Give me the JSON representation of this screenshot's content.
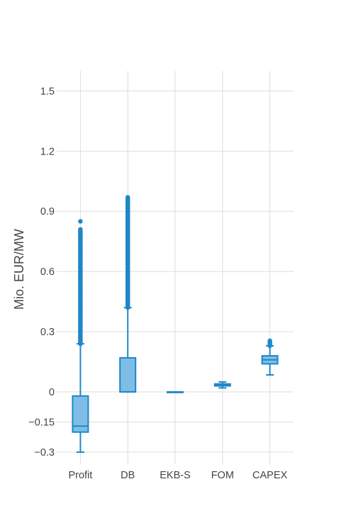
{
  "chart_data": {
    "type": "box",
    "title": "",
    "xlabel": "",
    "ylabel": "Mio. EUR/MW",
    "ylim": [
      -0.36,
      1.6
    ],
    "yticks": [
      {
        "value": 1.5,
        "label": "1.5"
      },
      {
        "value": 1.2,
        "label": "1.2"
      },
      {
        "value": 0.9,
        "label": "0.9"
      },
      {
        "value": 0.6,
        "label": "0.6"
      },
      {
        "value": 0.3,
        "label": "0.3"
      },
      {
        "value": 0,
        "label": "0"
      },
      {
        "value": -0.15,
        "label": "−0.15"
      },
      {
        "value": -0.3,
        "label": "−0.3"
      }
    ],
    "grid": true,
    "legend": "none",
    "color": "#1f87c7",
    "fill_color": "#7fbde6",
    "categories": [
      "Profit",
      "DB",
      "EKB-S",
      "FOM",
      "CAPEX"
    ],
    "boxes": [
      {
        "name": "Profit",
        "min": -0.3,
        "q1": -0.2,
        "median": -0.17,
        "q3": -0.02,
        "max": 0.24,
        "outliers_range": [
          0.24,
          0.81
        ],
        "outliers_extra": [
          0.85
        ]
      },
      {
        "name": "DB",
        "min": 0,
        "q1": 0,
        "median": 0,
        "q3": 0.17,
        "max": 0.42,
        "outliers_range": [
          0.42,
          0.97
        ],
        "outliers_extra": []
      },
      {
        "name": "EKB-S",
        "min": 0,
        "q1": 0,
        "median": 0,
        "q3": 0,
        "max": 0,
        "outliers_range": null,
        "outliers_extra": []
      },
      {
        "name": "FOM",
        "min": 0.02,
        "q1": 0.03,
        "median": 0.035,
        "q3": 0.04,
        "max": 0.05,
        "outliers_range": null,
        "outliers_extra": []
      },
      {
        "name": "CAPEX",
        "min": 0.085,
        "q1": 0.14,
        "median": 0.16,
        "q3": 0.18,
        "max": 0.23,
        "outliers_range": [
          0.23,
          0.255
        ],
        "outliers_extra": []
      }
    ]
  }
}
